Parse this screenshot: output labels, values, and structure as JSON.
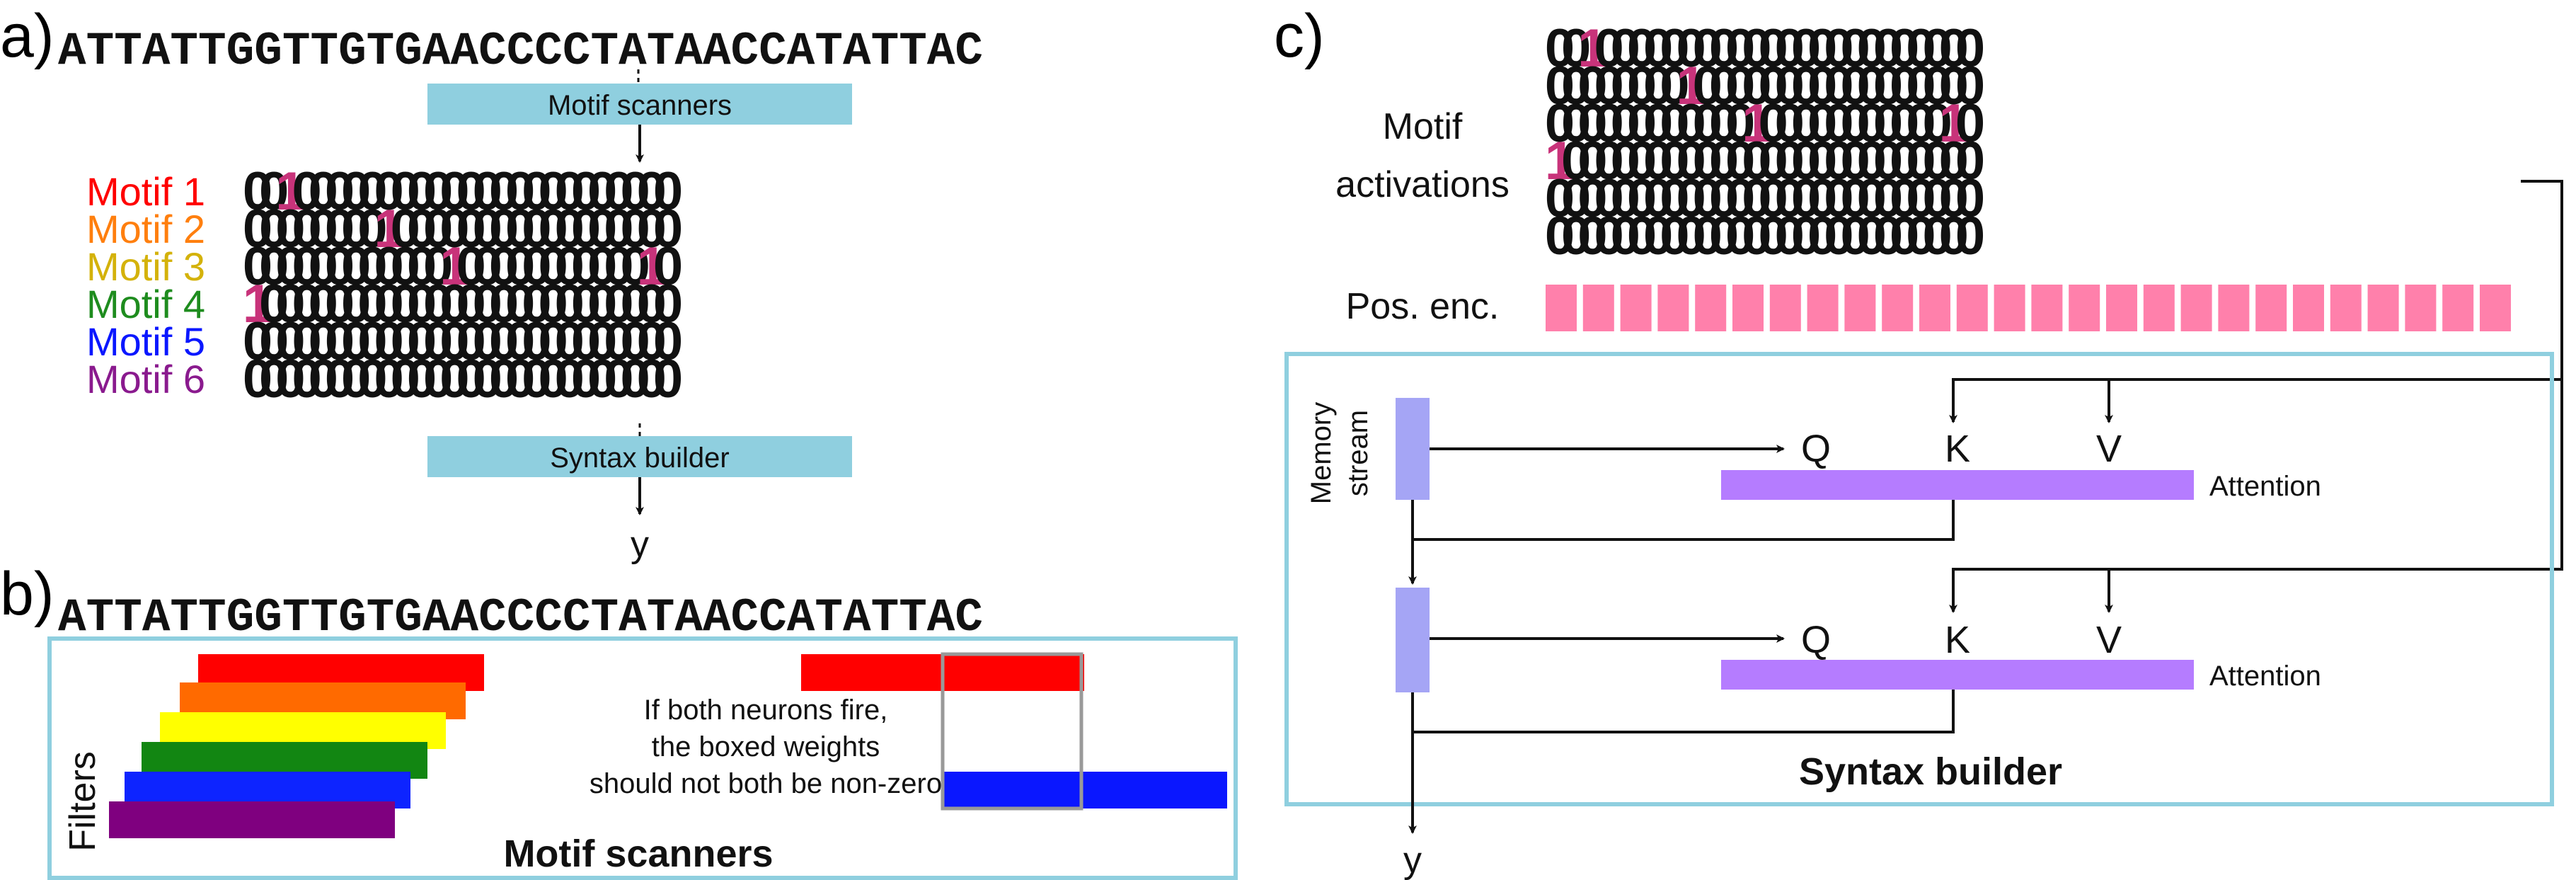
{
  "panels": {
    "a": {
      "label": "a)",
      "sequence": "ATTATTGGTTGTGAACCCCTATAACCATATTAC",
      "scanner_label": "Motif scanners",
      "syntax_label": "Syntax builder",
      "output_label": "y",
      "motifs": [
        {
          "label": "Motif 1",
          "color": "#ff0000",
          "hot": [
            2
          ]
        },
        {
          "label": "Motif 2",
          "color": "#ff7f0e",
          "hot": [
            8
          ]
        },
        {
          "label": "Motif 3",
          "color": "#d4b20a",
          "hot": [
            12,
            24
          ]
        },
        {
          "label": "Motif 4",
          "color": "#1e8c1e",
          "hot": [
            0
          ]
        },
        {
          "label": "Motif 5",
          "color": "#0a17ff",
          "hot": []
        },
        {
          "label": "Motif 6",
          "color": "#8a1a8e",
          "hot": []
        }
      ]
    },
    "b": {
      "label": "b)",
      "sequence": "ATTATTGGTTGTGAACCCCTATAACCATATTAC",
      "filters_label": "Filters",
      "filter_colors": [
        "#ff0000",
        "#ff6a00",
        "#ffff00",
        "#128612",
        "#0d24ff",
        "#7f007f"
      ],
      "caption_lines": [
        "If both neurons fire,",
        "the boxed weights",
        "should not both be non-zero"
      ],
      "title": "Motif scanners",
      "red": "#ff0000",
      "blue": "#0a17ff"
    },
    "c": {
      "label": "c)",
      "activations_label_1": "Motif",
      "activations_label_2": "activations",
      "pos_enc_label": "Pos. enc.",
      "memory_label_1": "Memory",
      "memory_label_2": "stream",
      "q": "Q",
      "k": "K",
      "v": "V",
      "attention_label": "Attention",
      "title": "Syntax builder",
      "output_label": "y",
      "pos_color": "#ff80ab",
      "memory_color": "#a5a5f5",
      "attention_color": "#b57cff",
      "rows": [
        {
          "hot": [
            2
          ]
        },
        {
          "hot": [
            8
          ]
        },
        {
          "hot": [
            12,
            24
          ]
        },
        {
          "hot": [
            0
          ]
        },
        {
          "hot": []
        },
        {
          "hot": []
        }
      ]
    }
  },
  "colors": {
    "scanner_box": "#8fcfdf",
    "frame": "#8fcfdf",
    "highlight": "#c8337a"
  },
  "bit_count": 26
}
